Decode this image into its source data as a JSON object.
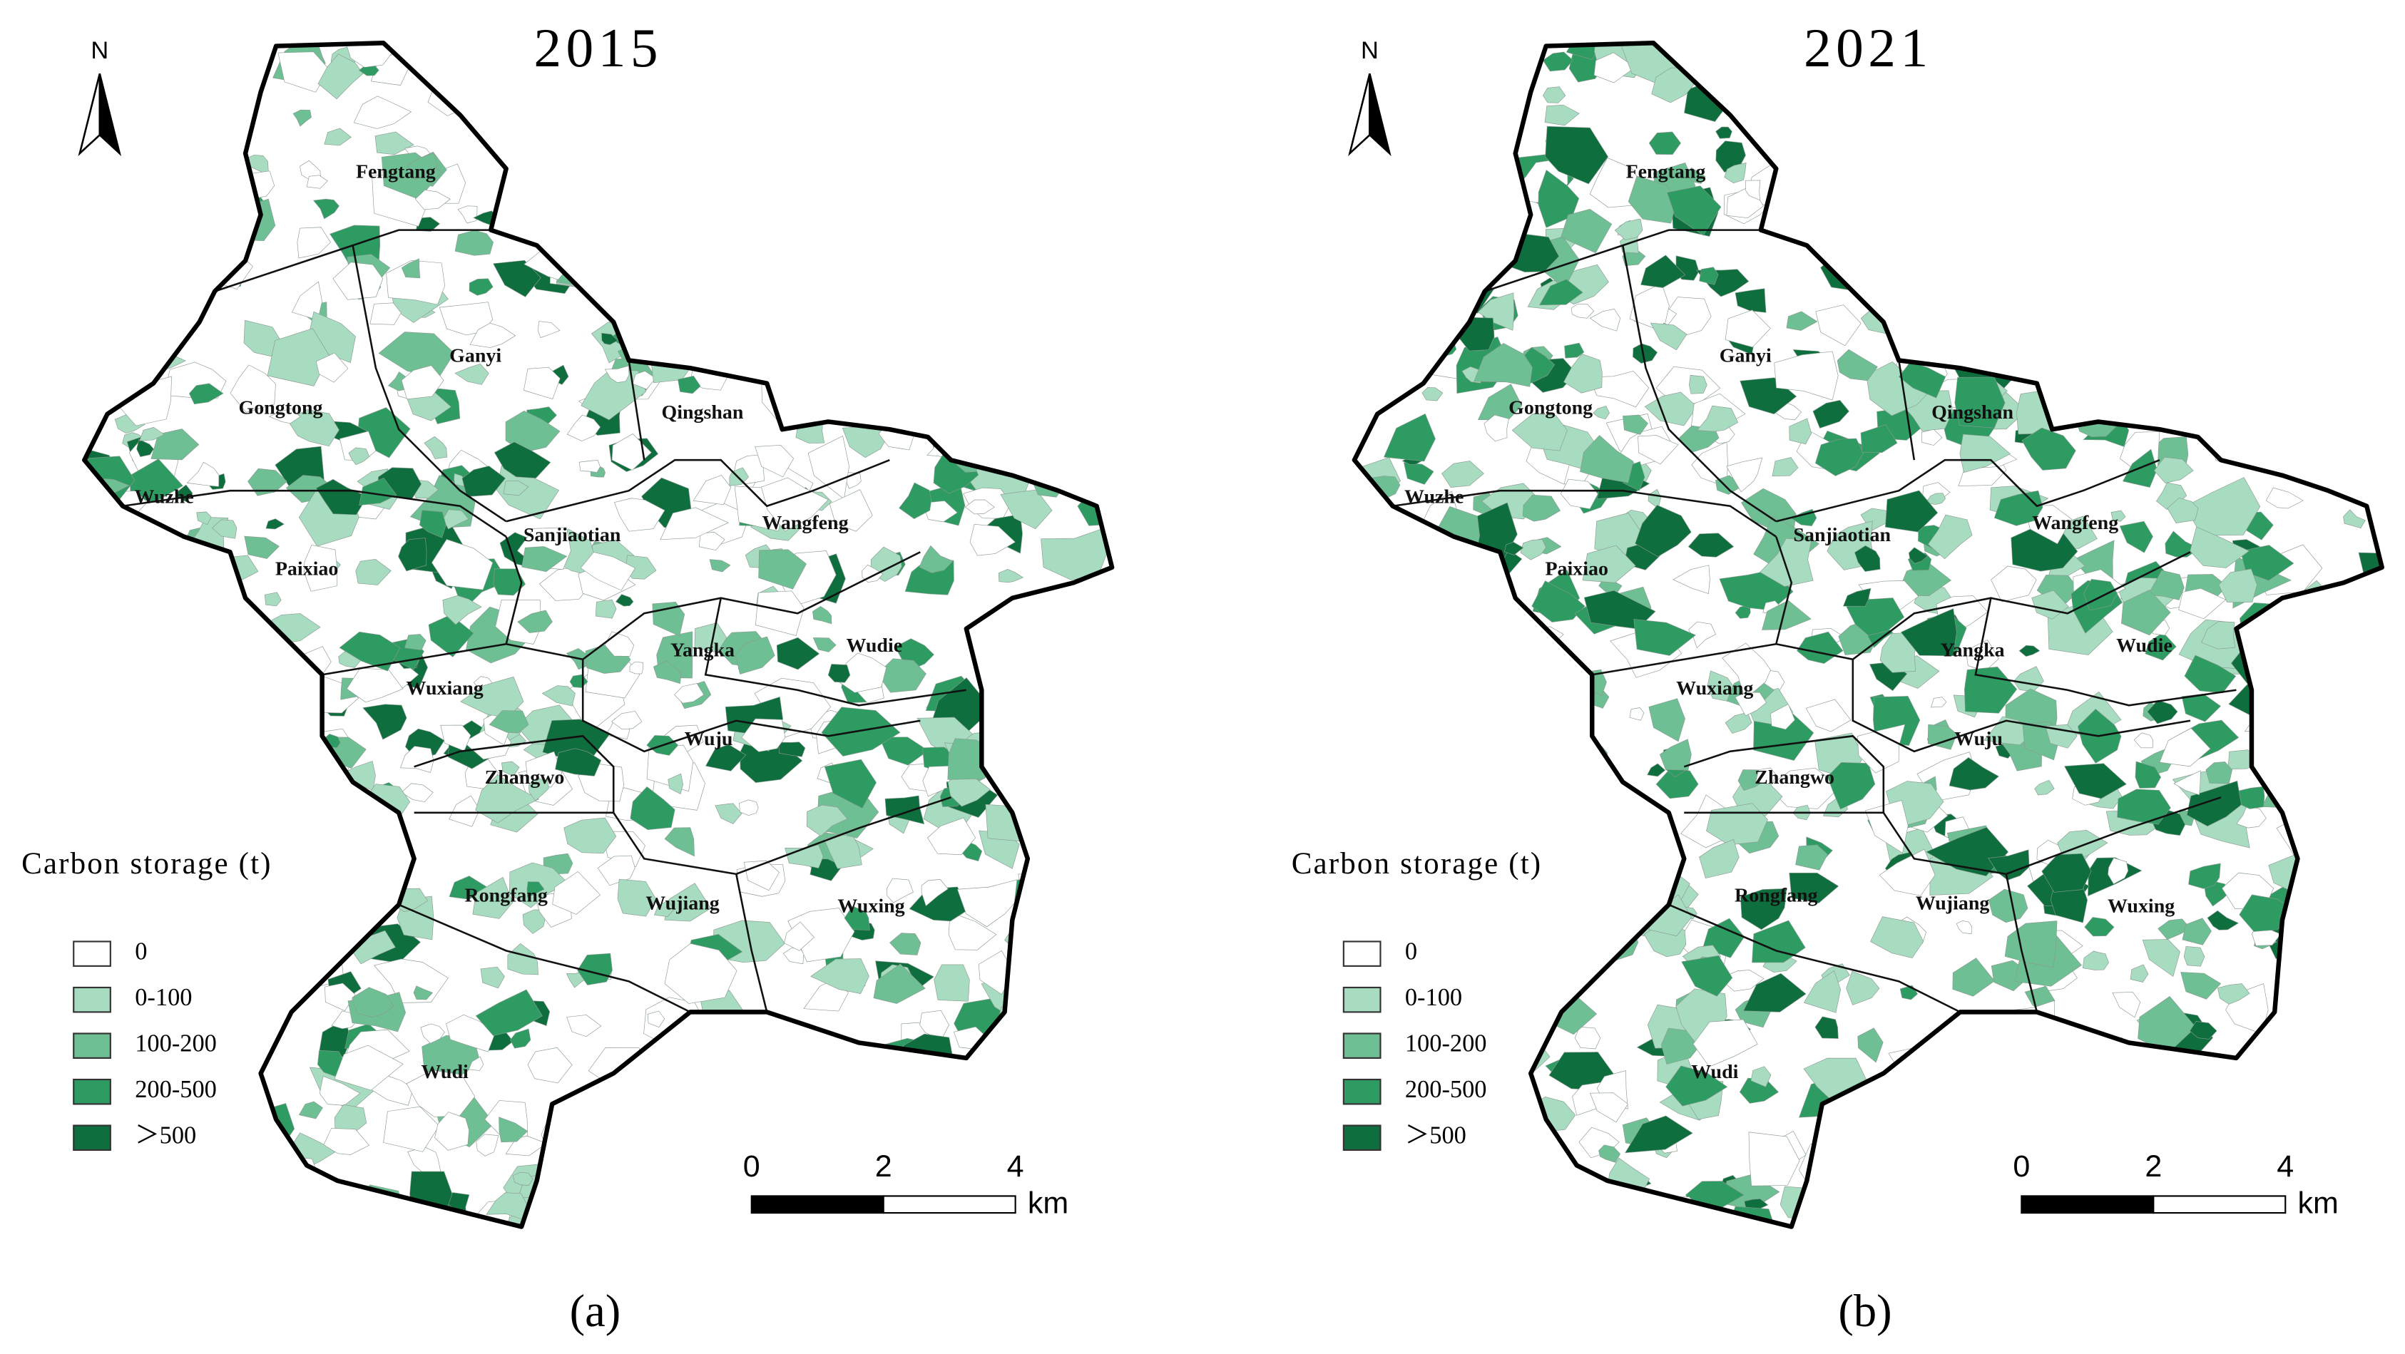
{
  "panels": [
    {
      "title": "2015",
      "caption": "(a)",
      "north": "N",
      "towns": [
        "Fengtang",
        "Ganyi",
        "Gongtong",
        "Qingshan",
        "Wuzhe",
        "Wangfeng",
        "Sanjiaotian",
        "Paixiao",
        "Yangka",
        "Wudie",
        "Wuxiang",
        "Wuju",
        "Zhangwo",
        "Rongfang",
        "Wujiang",
        "Wuxing",
        "Wudi"
      ],
      "legend": {
        "title": "Carbon storage (t)",
        "items": [
          {
            "label": "0",
            "color": "#ffffff"
          },
          {
            "label": "0-100",
            "color": "#a8dcc0"
          },
          {
            "label": "100-200",
            "color": "#6fbf94"
          },
          {
            "label": "200-500",
            "color": "#2e9b62"
          },
          {
            "label": "＞500",
            "color": "#0f6e3e"
          }
        ]
      },
      "scale": {
        "ticks": [
          "0",
          "2",
          "4"
        ],
        "unit": "km"
      }
    },
    {
      "title": "2021",
      "caption": "(b)",
      "north": "N",
      "towns": [
        "Fengtang",
        "Ganyi",
        "Gongtong",
        "Qingshan",
        "Wuzhe",
        "Wangfeng",
        "Sanjiaotian",
        "Paixiao",
        "Yangka",
        "Wudie",
        "Wuxiang",
        "Wuju",
        "Zhangwo",
        "Rongfang",
        "Wujiang",
        "Wuxing",
        "Wudi"
      ],
      "legend": {
        "title": "Carbon storage (t)",
        "items": [
          {
            "label": "0",
            "color": "#ffffff"
          },
          {
            "label": "0-100",
            "color": "#a8dcc0"
          },
          {
            "label": "100-200",
            "color": "#6fbf94"
          },
          {
            "label": "200-500",
            "color": "#2e9b62"
          },
          {
            "label": "＞500",
            "color": "#0f6e3e"
          }
        ]
      },
      "scale": {
        "ticks": [
          "0",
          "2",
          "4"
        ],
        "unit": "km"
      }
    }
  ]
}
